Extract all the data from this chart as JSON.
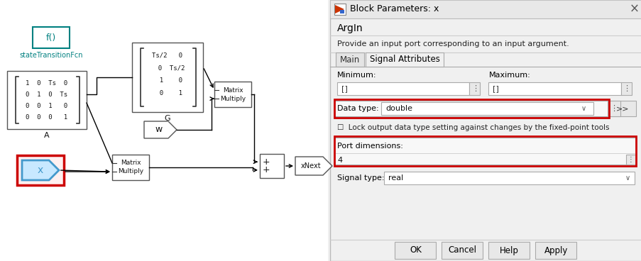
{
  "title_bar": "Block Parameters: x",
  "argin_label": "ArgIn",
  "argin_desc": "Provide an input port corresponding to an input argument.",
  "tab_main": "Main",
  "tab_signal": "Signal Attributes",
  "min_label": "Minimum:",
  "max_label": "Maximum:",
  "min_val": "[]",
  "max_val": "[]",
  "data_type_label": "Data type:",
  "data_type_val": "double",
  "lock_label": "Lock output data type setting against changes by the fixed-point tools",
  "port_dim_label": "Port dimensions:",
  "port_dim_val": "4",
  "signal_type_label": "Signal type:",
  "signal_type_val": "real",
  "btn_ok": "OK",
  "btn_cancel": "Cancel",
  "btn_help": "Help",
  "btn_apply": "Apply",
  "left_bg": "#ffffff",
  "right_bg": "#f0f0f0",
  "fcn_color": "#008080",
  "highlight_red": "#cc0000",
  "highlight_blue": "#4499cc",
  "lines_A": [
    "1  0  Ts  0",
    "0  1  0  Ts",
    "0  0  1   0",
    "0  0  0   1"
  ],
  "lines_G": [
    "Ts/2   0",
    "  0  Ts/2",
    "  1    0",
    "  0    1"
  ]
}
